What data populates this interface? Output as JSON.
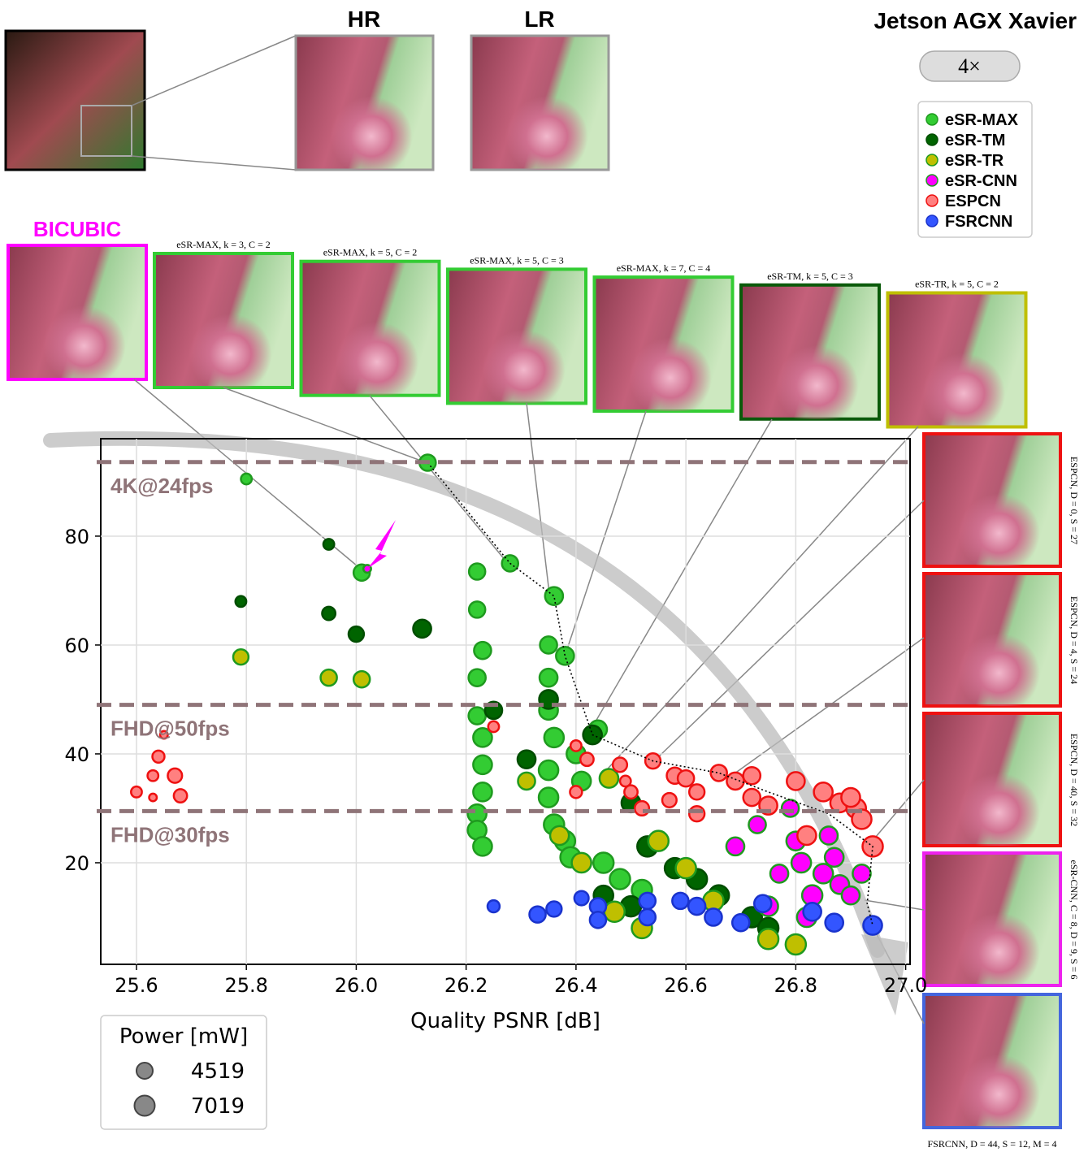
{
  "figure": {
    "title": "Jetson AGX Xavier",
    "scale": "4×",
    "hr": "HR",
    "lr": "LR",
    "bicubic": "BICUBIC",
    "top_insets": [
      "eSR-MAX, k = 3, C = 2",
      "eSR-MAX, k = 5, C = 2",
      "eSR-MAX, k = 5, C = 3",
      "eSR-MAX, k = 7, C = 4",
      "eSR-TM, k = 5, C = 3",
      "eSR-TR, k = 5, C = 2"
    ],
    "side_insets": [
      "ESPCN, D = 0, S = 27",
      "ESPCN, D = 4, S = 24",
      "ESPCN, D = 40, S = 32",
      "eSR-CNN, C = 8, D = 9, S = 6"
    ],
    "bottom_inset": "FSRCNN, D = 44, S = 12, M = 4"
  },
  "chart_data": {
    "type": "scatter",
    "x_label": "Quality PSNR [dB]",
    "xlim": [
      25.535,
      27.008
    ],
    "ylim": [
      1.34,
      97.9
    ],
    "xticks": [
      25.6,
      25.8,
      {
        "value": 26.0,
        "label": "26.0"
      },
      26.2,
      26.4,
      26.6,
      26.8,
      {
        "value": 27.0,
        "label": "27.0"
      }
    ],
    "yticks": [
      20,
      40,
      60,
      80
    ],
    "grid": true,
    "reference_lines": [
      {
        "label": "4K@24fps",
        "value": 93.6
      },
      {
        "label": "FHD@50fps",
        "value": 49
      },
      {
        "label": "FHD@30fps",
        "value": 29.5
      }
    ],
    "size_legend": {
      "title": "Power [mW]",
      "values": [
        4519,
        7019
      ]
    },
    "series": [
      {
        "name": "eSR-MAX",
        "color": "#33cc33",
        "edge": "#1f9a1f",
        "x": [
          26.13,
          25.8,
          26.01,
          26.28,
          26.36,
          26.38,
          26.44,
          26.22,
          26.22,
          26.23,
          26.22,
          26.22,
          26.23,
          26.23,
          26.23,
          26.22,
          26.22,
          26.23,
          26.35,
          26.35,
          26.35,
          26.36,
          26.35,
          26.35,
          26.36,
          26.38,
          26.39,
          26.4,
          26.41,
          26.45,
          26.48,
          26.52
        ],
        "values": [
          93.5,
          90.5,
          73.3,
          75,
          69,
          58,
          44.5,
          73.5,
          66.5,
          59,
          54,
          47,
          43,
          38,
          33,
          29,
          26,
          23,
          60,
          54,
          48,
          43,
          37,
          32,
          27,
          24,
          21,
          40,
          35,
          20,
          17,
          15
        ],
        "sizes": [
          4519,
          2000,
          4519,
          4519,
          5500,
          5500,
          5500,
          4519,
          4519,
          5000,
          5000,
          5000,
          6000,
          6000,
          6000,
          6000,
          6000,
          6000,
          5000,
          5500,
          6000,
          6500,
          6500,
          6500,
          7019,
          7019,
          7019,
          6000,
          6000,
          7019,
          7019,
          7019
        ]
      },
      {
        "name": "eSR-TM",
        "color": "#006400",
        "edge": "#004d00",
        "x": [
          25.79,
          25.95,
          25.95,
          26.0,
          26.12,
          26.25,
          26.31,
          26.35,
          26.43,
          26.5,
          26.53,
          26.58,
          26.62,
          26.66,
          26.72,
          26.75,
          26.5,
          26.45
        ],
        "values": [
          68,
          78.5,
          65.8,
          62,
          63,
          48,
          39,
          50,
          43.5,
          31,
          23,
          19,
          17,
          14,
          10,
          8,
          12,
          14
        ],
        "sizes": [
          2000,
          2000,
          3000,
          4000,
          5500,
          5000,
          5500,
          6000,
          6000,
          6000,
          7019,
          7019,
          7019,
          7019,
          7019,
          7019,
          7019,
          6500
        ]
      },
      {
        "name": "eSR-TR",
        "color": "#bfbf00",
        "edge": "#1f9a1f",
        "x": [
          25.79,
          25.95,
          26.01,
          26.31,
          26.37,
          26.41,
          26.46,
          26.55,
          26.6,
          26.65,
          26.75,
          26.8,
          26.52,
          26.47
        ],
        "values": [
          57.8,
          54,
          53.7,
          35,
          25,
          20,
          35.5,
          24,
          19,
          13,
          6,
          5,
          8,
          11
        ],
        "sizes": [
          4000,
          4519,
          4519,
          5000,
          6000,
          6500,
          6000,
          7019,
          7019,
          7019,
          7019,
          7019,
          7019,
          7019
        ]
      },
      {
        "name": "eSR-CNN",
        "color": "#ff00ff",
        "edge": "#1f9a1f",
        "x": [
          26.02,
          26.69,
          26.73,
          26.77,
          26.8,
          26.81,
          26.83,
          26.85,
          26.87,
          26.88,
          26.9,
          26.92,
          26.75,
          26.82,
          26.86,
          26.79
        ],
        "values": [
          74,
          23,
          27,
          18,
          24,
          20,
          14,
          18,
          21,
          16,
          14,
          18,
          12,
          10,
          25,
          30
        ],
        "sizes": [
          1000,
          5500,
          5000,
          5500,
          6000,
          6500,
          7019,
          6500,
          6000,
          6000,
          5500,
          5500,
          6500,
          6500,
          5500,
          5000
        ]
      },
      {
        "name": "ESPCN",
        "color": "#ff8080",
        "edge": "#ee1111",
        "x": [
          25.6,
          25.63,
          25.64,
          25.65,
          25.63,
          25.67,
          25.68,
          26.25,
          26.4,
          26.4,
          26.42,
          26.48,
          26.49,
          26.5,
          26.52,
          26.54,
          26.57,
          26.58,
          26.62,
          26.66,
          26.69,
          26.72,
          26.75,
          26.8,
          26.85,
          26.88,
          26.91,
          26.92,
          26.94,
          26.82,
          26.72,
          26.9,
          26.62,
          26.6
        ],
        "values": [
          33,
          36,
          39.5,
          43.5,
          32,
          36,
          32.3,
          45,
          41.5,
          33,
          39,
          38,
          35,
          33,
          30,
          38.7,
          31.5,
          36,
          33,
          36.5,
          35,
          32,
          30.5,
          35,
          33,
          31,
          30,
          28,
          23,
          25,
          36,
          32,
          29,
          35.5
        ],
        "sizes": [
          2000,
          2000,
          2500,
          1000,
          1000,
          3500,
          3000,
          2000,
          2000,
          2500,
          3000,
          3500,
          2000,
          3000,
          3500,
          4000,
          3500,
          4519,
          4000,
          4519,
          5000,
          5000,
          5500,
          5500,
          6000,
          6000,
          6500,
          6500,
          7019,
          6000,
          5000,
          6000,
          4000,
          4519
        ]
      },
      {
        "name": "FSRCNN",
        "color": "#3355ff",
        "edge": "#1a33cc",
        "x": [
          26.25,
          26.33,
          26.36,
          26.41,
          26.44,
          26.44,
          26.53,
          26.53,
          26.59,
          26.62,
          26.65,
          26.7,
          26.74,
          26.83,
          26.87,
          26.94
        ],
        "values": [
          12,
          10.5,
          11.5,
          13.5,
          12,
          9.5,
          13,
          10,
          13,
          12,
          10,
          9,
          12.5,
          11,
          9,
          8.5
        ],
        "sizes": [
          2500,
          4519,
          4000,
          3500,
          4519,
          4519,
          4519,
          4519,
          4519,
          5000,
          5000,
          5000,
          5000,
          5500,
          5500,
          6000
        ]
      }
    ],
    "frontier": {
      "x": [
        26.13,
        26.28,
        26.36,
        26.38,
        26.43,
        26.54,
        26.66,
        26.75,
        26.86,
        26.94,
        26.93,
        26.94
      ],
      "values": [
        93.5,
        75,
        69,
        58,
        43.5,
        38.7,
        36.5,
        33,
        29,
        23,
        12.5,
        8.5
      ]
    }
  }
}
